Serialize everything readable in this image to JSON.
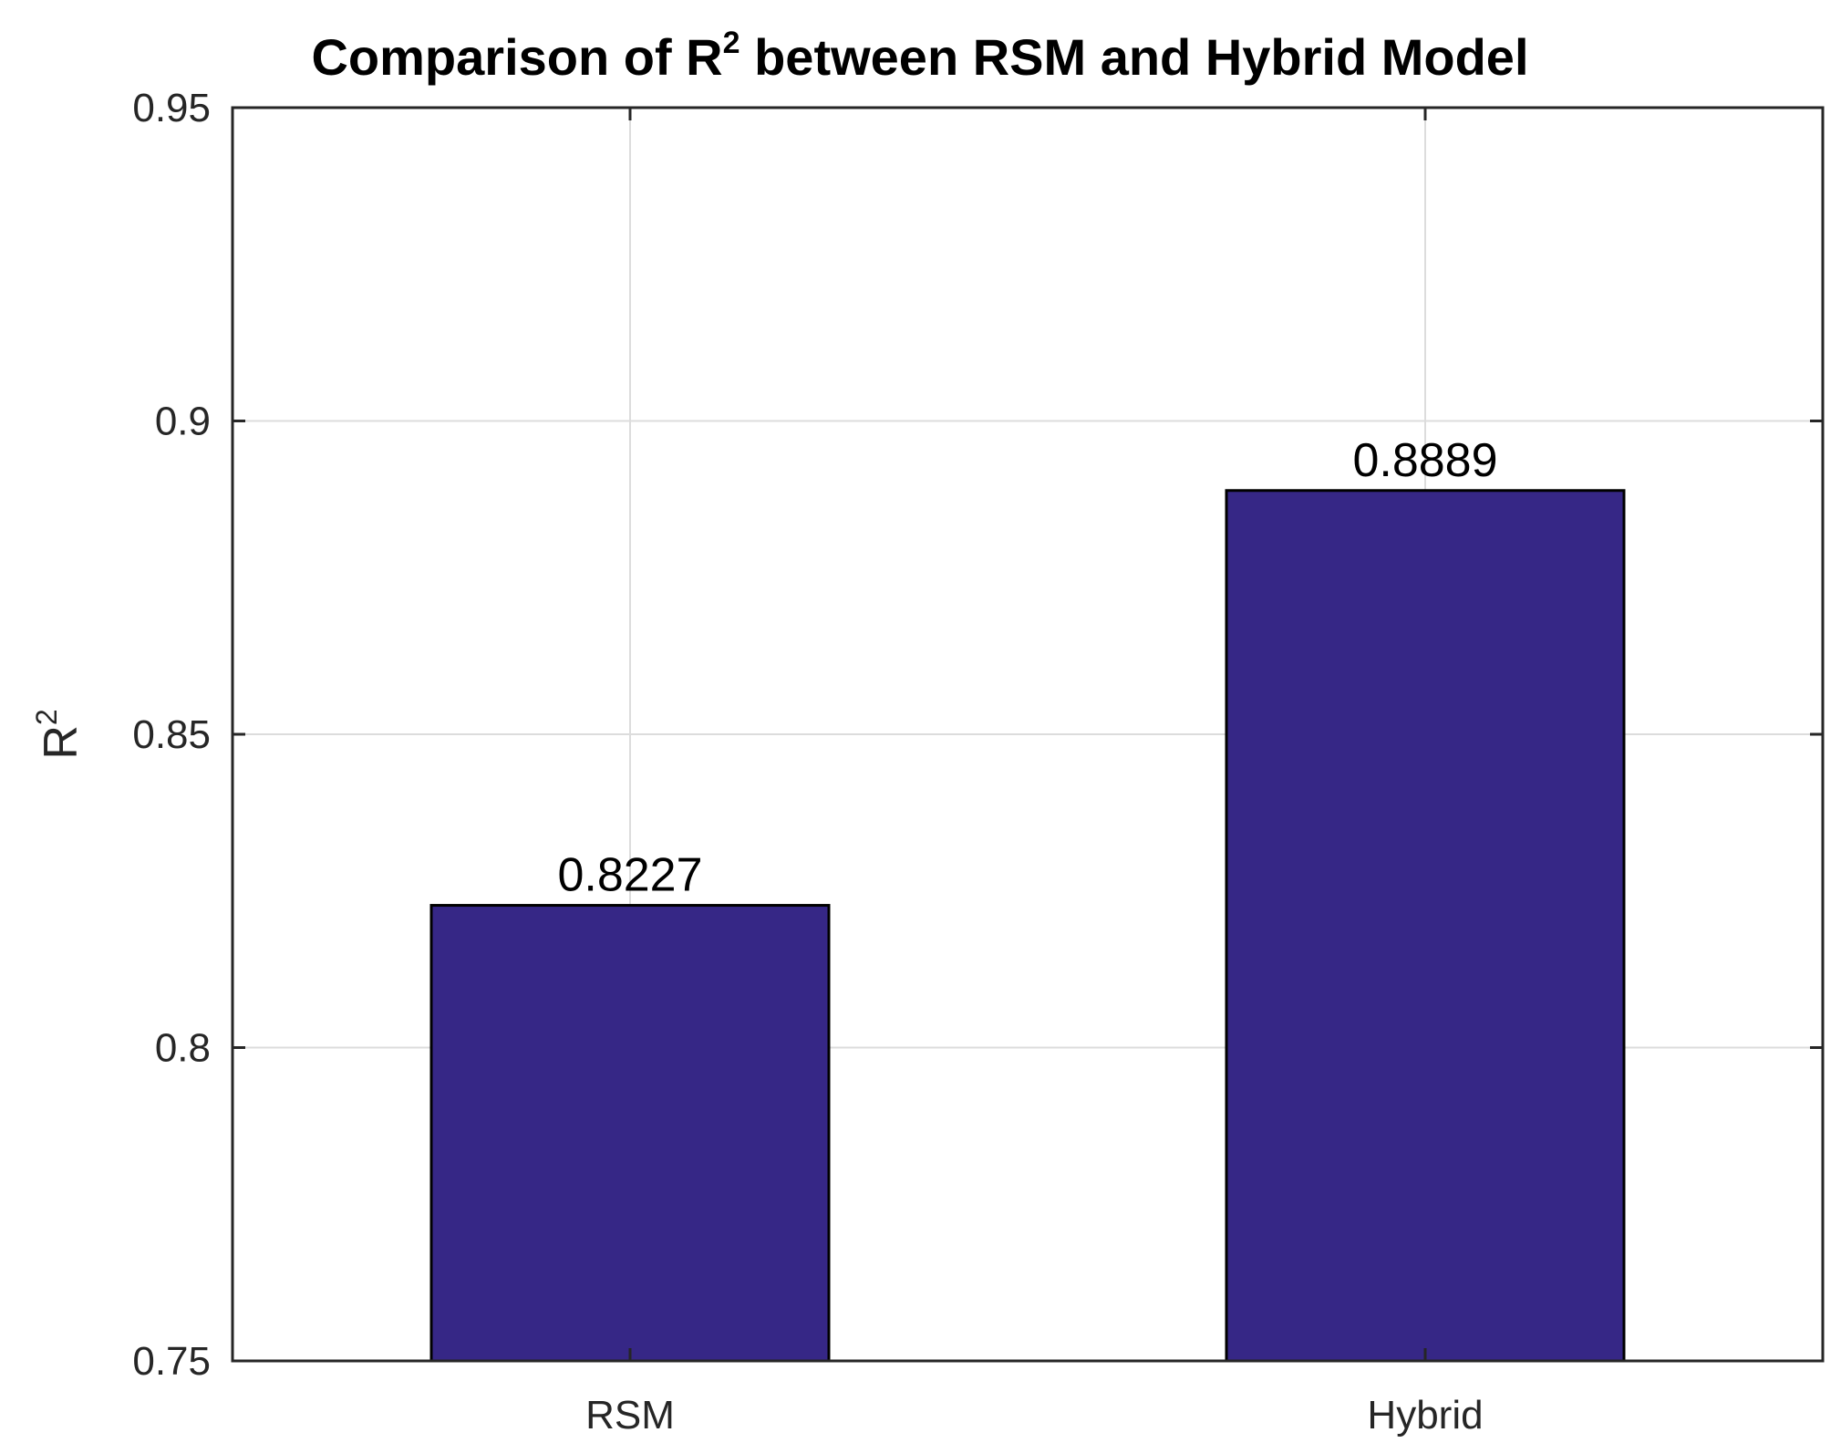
{
  "chart_data": {
    "type": "bar",
    "title": {
      "prefix": "Comparison of R",
      "superscript": "2",
      "suffix": " between RSM and Hybrid Model"
    },
    "ylabel": {
      "base": "R",
      "superscript": "2"
    },
    "xlabel": "",
    "categories": [
      "RSM",
      "Hybrid"
    ],
    "values": [
      0.8227,
      0.8889
    ],
    "data_labels": [
      "0.8227",
      "0.8889"
    ],
    "ylim": [
      0.75,
      0.95
    ],
    "yticks": [
      0.75,
      0.8,
      0.85,
      0.9,
      0.95
    ],
    "ytick_labels": [
      "0.75",
      "0.8",
      "0.85",
      "0.9",
      "0.95"
    ],
    "grid": true,
    "legend": "none",
    "colors": {
      "bar_fill": "#362786",
      "bar_edge": "#000000",
      "grid": "#dcdcdc",
      "axis": "#262626"
    }
  }
}
